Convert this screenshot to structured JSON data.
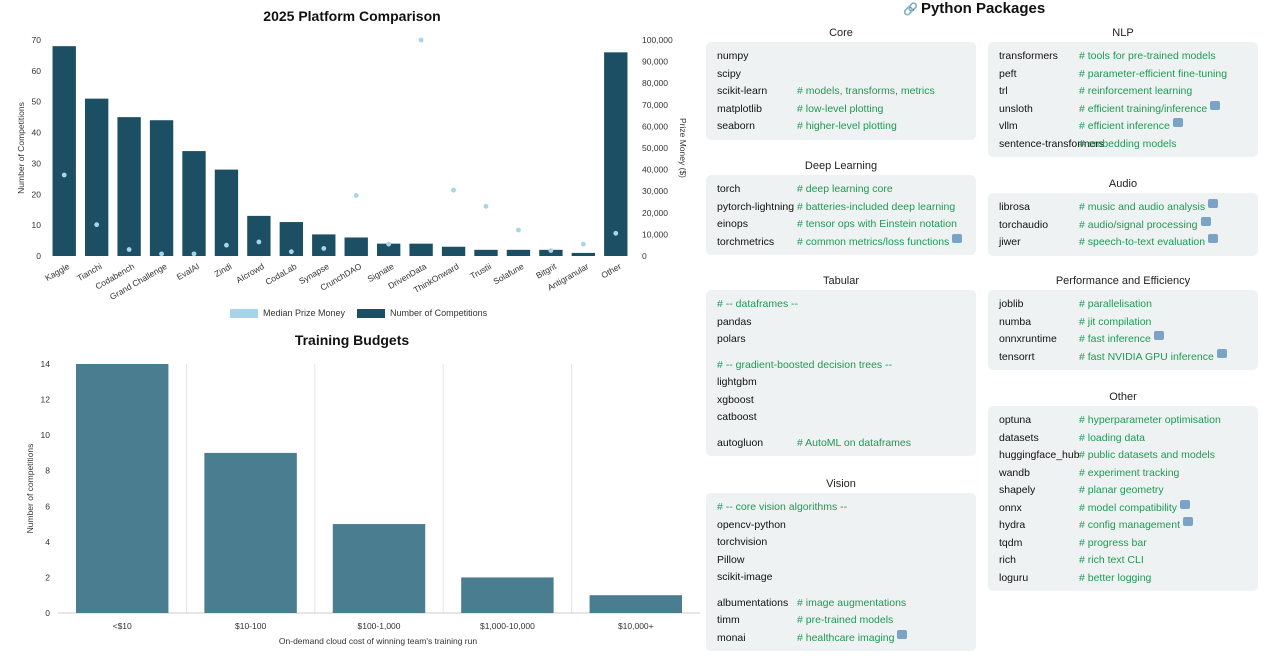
{
  "chart_data": [
    {
      "type": "bar",
      "title": "2025 Platform Comparison",
      "categories": [
        "Kaggle",
        "Tianchi",
        "Codabench",
        "Grand Challenge",
        "EvalAI",
        "Zindi",
        "AIcrowd",
        "CodaLab",
        "Synapse",
        "CrunchDAO",
        "Signate",
        "DrivenData",
        "ThinkOnward",
        "Trustii",
        "Solafune",
        "Bitgrit",
        "Antigranular",
        "Other"
      ],
      "ylabel": "Number of Competitions",
      "y2label": "Prize Money ($)",
      "ylim": [
        0,
        70
      ],
      "y2lim": [
        0,
        100000
      ],
      "yticks": [
        "0",
        "10",
        "20",
        "30",
        "40",
        "50",
        "60",
        "70"
      ],
      "y2ticks": [
        "0",
        "10,000",
        "20,000",
        "30,000",
        "40,000",
        "50,000",
        "60,000",
        "70,000",
        "80,000",
        "90,000",
        "100,000"
      ],
      "series": [
        {
          "name": "Number of Competitions",
          "type": "bar",
          "color": "#1c4f63",
          "values": [
            68,
            51,
            45,
            44,
            34,
            28,
            13,
            11,
            7,
            6,
            4,
            4,
            3,
            2,
            2,
            2,
            1,
            66
          ]
        },
        {
          "name": "Median Prize Money",
          "type": "scatter",
          "color": "#a8d4ea",
          "values": [
            37500,
            14500,
            3000,
            1000,
            1000,
            5000,
            6500,
            2000,
            3500,
            28000,
            5500,
            100000,
            30500,
            23000,
            12000,
            2500,
            5500,
            10500
          ]
        }
      ],
      "legend": "bottom"
    },
    {
      "type": "bar",
      "title": "Training Budgets",
      "categories": [
        "<$10",
        "$10-100",
        "$100-1,000",
        "$1,000-10,000",
        "$10,000+"
      ],
      "values": [
        14,
        9,
        5,
        2,
        1
      ],
      "xlabel": "On-demand cloud cost of winning team's training run",
      "ylabel": "Number of competitions",
      "ylim": [
        0,
        14
      ],
      "yticks": [
        "0",
        "2",
        "4",
        "6",
        "8",
        "10",
        "12",
        "14"
      ],
      "color": "#4a7d90"
    }
  ],
  "legend": {
    "prize": "Median Prize Money",
    "count": "Number of Competitions"
  },
  "packages": {
    "title": "Python Packages",
    "title_icon": "link-icon",
    "core": {
      "head": "Core",
      "rows": [
        {
          "n": "numpy",
          "c": ""
        },
        {
          "n": "scipy",
          "c": ""
        },
        {
          "n": "scikit-learn",
          "c": "# models, transforms, metrics"
        },
        {
          "n": "matplotlib",
          "c": "# low-level plotting"
        },
        {
          "n": "seaborn",
          "c": "# higher-level plotting"
        }
      ]
    },
    "dl": {
      "head": "Deep Learning",
      "rows": [
        {
          "n": "torch",
          "c": "# deep learning core"
        },
        {
          "n": "pytorch-lightning",
          "c": "# batteries-included deep learning"
        },
        {
          "n": "einops",
          "c": "# tensor ops with Einstein notation"
        },
        {
          "n": "torchmetrics",
          "c": "# common metrics/loss functions"
        }
      ]
    },
    "tab": {
      "head": "Tabular",
      "c1": "# -- dataframes --",
      "pandas": "pandas",
      "polars": "polars",
      "c2": "# -- gradient-boosted decision trees --",
      "lightgbm": "lightgbm",
      "xgboost": "xgboost",
      "catboost": "catboost",
      "autogluon": "autogluon",
      "autogluon_c": "# AutoML on dataframes"
    },
    "vision": {
      "head": "Vision",
      "c1": "# -- core vision algorithms --",
      "r1": "opencv-python",
      "r2": "torchvision",
      "r3": "Pillow",
      "r4": "scikit-image",
      "r5": "albumentations",
      "r5c": "# image augmentations",
      "r6": "timm",
      "r6c": "# pre-trained models",
      "r7": "monai",
      "r7c": "# healthcare imaging"
    },
    "nlp": {
      "head": "NLP",
      "rows": [
        {
          "n": "transformers",
          "c": "# tools for pre-trained models"
        },
        {
          "n": "peft",
          "c": "# parameter-efficient fine-tuning"
        },
        {
          "n": "trl",
          "c": "# reinforcement learning"
        },
        {
          "n": "unsloth",
          "c": "# efficient training/inference"
        },
        {
          "n": "vllm",
          "c": "# efficient inference"
        },
        {
          "n": "sentence-transformers",
          "c": "# embedding models"
        }
      ]
    },
    "audio": {
      "head": "Audio",
      "rows": [
        {
          "n": "librosa",
          "c": "# music and audio analysis"
        },
        {
          "n": "torchaudio",
          "c": "# audio/signal processing"
        },
        {
          "n": "jiwer",
          "c": "# speech-to-text evaluation"
        }
      ]
    },
    "perf": {
      "head": "Performance and Efficiency",
      "rows": [
        {
          "n": "joblib",
          "c": "# parallelisation"
        },
        {
          "n": "numba",
          "c": "# jit compilation"
        },
        {
          "n": "onnxruntime",
          "c": "# fast inference"
        },
        {
          "n": "tensorrt",
          "c": "# fast NVIDIA GPU inference"
        }
      ]
    },
    "other": {
      "head": "Other",
      "rows": [
        {
          "n": "optuna",
          "c": "# hyperparameter optimisation"
        },
        {
          "n": "datasets",
          "c": "# loading data"
        },
        {
          "n": "huggingface_hub",
          "c": "# public datasets and models"
        },
        {
          "n": "wandb",
          "c": "# experiment tracking"
        },
        {
          "n": "shapely",
          "c": "# planar geometry"
        },
        {
          "n": "onnx",
          "c": "# model compatibility"
        },
        {
          "n": "hydra",
          "c": "# config management"
        },
        {
          "n": "tqdm",
          "c": "# progress bar"
        },
        {
          "n": "rich",
          "c": "# rich text CLI"
        },
        {
          "n": "loguru",
          "c": "# better logging"
        }
      ]
    }
  }
}
